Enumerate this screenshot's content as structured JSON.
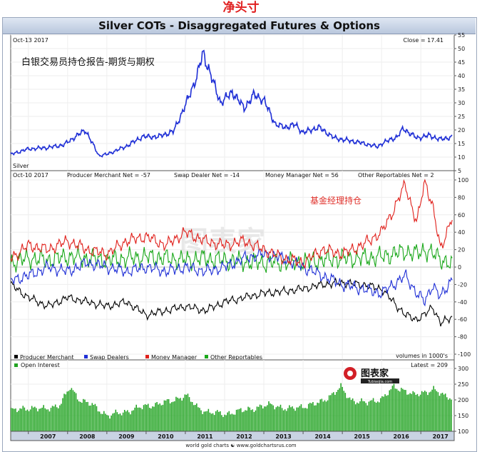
{
  "page": {
    "title": "净头寸"
  },
  "header": {
    "banner": "Silver COTs - Disaggregated Futures & Options"
  },
  "watermark": {
    "text": "图表家"
  },
  "logo": {
    "name": "图表家",
    "sub": "Tubiaojia.com"
  },
  "footer": {
    "credit": "world gold charts ☯ www.goldchartsrus.com"
  },
  "chart_data": [
    {
      "type": "line",
      "panel": "price",
      "date_label": "Oct-13  2017",
      "close_label": "Close = 17.41",
      "series_label": "Silver",
      "annotation": "白银交易员持仓报告-期货与期权",
      "ylim": [
        5,
        55
      ],
      "yticks": [
        5,
        10,
        15,
        20,
        25,
        30,
        35,
        40,
        45,
        50,
        55
      ],
      "x_years": [
        "2007",
        "2008",
        "2009",
        "2010",
        "2011",
        "2012",
        "2013",
        "2014",
        "2015",
        "2016",
        "2017"
      ],
      "x": [
        2006.55,
        2007.0,
        2007.5,
        2007.9,
        2008.2,
        2008.45,
        2008.8,
        2009.0,
        2009.5,
        2009.9,
        2010.3,
        2010.7,
        2011.0,
        2011.3,
        2011.45,
        2011.7,
        2011.9,
        2012.2,
        2012.5,
        2012.75,
        2013.0,
        2013.3,
        2013.55,
        2013.8,
        2014.0,
        2014.4,
        2014.8,
        2015.0,
        2015.4,
        2015.9,
        2016.0,
        2016.4,
        2016.55,
        2016.9,
        2017.2,
        2017.5,
        2017.78
      ],
      "values": [
        11,
        13,
        13.5,
        14.5,
        17.5,
        20,
        10.5,
        11,
        14,
        17.5,
        17.5,
        19.5,
        29,
        40,
        48.5,
        38,
        30,
        34,
        28,
        33,
        31,
        22,
        21,
        22,
        19,
        21,
        17,
        16.5,
        15.5,
        13.8,
        15,
        17.5,
        20.5,
        17,
        18,
        16.5,
        17.4
      ]
    },
    {
      "type": "line",
      "panel": "net positions",
      "date_label": "Oct-10  2017",
      "header_items": [
        "Producer Merchant Net = -57",
        "Swap Dealer Net = -14",
        "Money Manager Net = 56",
        "Other Reportables Net = 2"
      ],
      "annotation": "基金经理持仓",
      "ylim": [
        -100,
        100
      ],
      "yticks": [
        -100,
        -80,
        -60,
        -40,
        -20,
        0,
        20,
        40,
        60,
        80,
        100
      ],
      "x": [
        2006.55,
        2007.0,
        2007.5,
        2008.0,
        2008.5,
        2009.0,
        2009.5,
        2010.0,
        2010.5,
        2011.0,
        2011.5,
        2012.0,
        2012.5,
        2013.0,
        2013.5,
        2014.0,
        2014.5,
        2015.0,
        2015.5,
        2016.0,
        2016.3,
        2016.6,
        2016.9,
        2017.1,
        2017.3,
        2017.5,
        2017.78
      ],
      "series": [
        {
          "name": "Producer Merchant",
          "color": "#000000",
          "values": [
            -20,
            -35,
            -45,
            -35,
            -40,
            -45,
            -40,
            -55,
            -50,
            -45,
            -50,
            -40,
            -35,
            -30,
            -28,
            -25,
            -20,
            -18,
            -20,
            -25,
            -40,
            -55,
            -60,
            -55,
            -45,
            -65,
            -57
          ]
        },
        {
          "name": "Swap Dealers",
          "color": "#1f2fd6",
          "values": [
            -15,
            -10,
            0,
            -5,
            5,
            0,
            -5,
            0,
            -5,
            0,
            -5,
            0,
            10,
            15,
            10,
            0,
            -10,
            -20,
            -25,
            -30,
            -20,
            -10,
            -30,
            -40,
            -20,
            -35,
            -14
          ]
        },
        {
          "name": "Money Manager",
          "color": "#e0201b",
          "values": [
            10,
            25,
            20,
            30,
            20,
            15,
            30,
            35,
            25,
            40,
            30,
            25,
            30,
            20,
            10,
            5,
            20,
            15,
            25,
            40,
            65,
            95,
            50,
            100,
            70,
            20,
            56
          ]
        },
        {
          "name": "Other Reportables",
          "color": "#1aa81a",
          "values": [
            5,
            10,
            8,
            12,
            10,
            8,
            10,
            12,
            10,
            8,
            10,
            8,
            6,
            5,
            5,
            6,
            8,
            10,
            10,
            12,
            15,
            18,
            15,
            20,
            15,
            10,
            2
          ]
        }
      ],
      "legend": [
        "Producer Merchant",
        "Swap Dealers",
        "Money Manager",
        "Other Reportables"
      ],
      "legend_note": "volumes in 1000's"
    },
    {
      "type": "bar",
      "panel": "open interest",
      "label": "Open Interest",
      "latest_label": "Latest = 209",
      "color": "#22a322",
      "ylim": [
        100,
        300
      ],
      "yticks": [
        100,
        150,
        200,
        250,
        300
      ],
      "x": [
        2006.55,
        2007.0,
        2007.4,
        2007.8,
        2008.05,
        2008.3,
        2008.6,
        2009.0,
        2009.4,
        2009.8,
        2010.2,
        2010.6,
        2011.0,
        2011.3,
        2011.6,
        2012.0,
        2012.4,
        2012.8,
        2013.2,
        2013.6,
        2014.0,
        2014.4,
        2014.7,
        2014.95,
        2015.2,
        2015.6,
        2016.0,
        2016.3,
        2016.6,
        2016.8,
        2017.0,
        2017.3,
        2017.6,
        2017.78
      ],
      "values": [
        165,
        175,
        170,
        185,
        240,
        200,
        185,
        150,
        160,
        175,
        185,
        195,
        215,
        175,
        160,
        155,
        165,
        175,
        185,
        170,
        180,
        190,
        215,
        240,
        200,
        190,
        205,
        240,
        230,
        215,
        220,
        235,
        210,
        209
      ]
    }
  ],
  "chart_labels": {
    "legend_title_swatches": [
      "#000000",
      "#1f2fd6",
      "#e0201b",
      "#1aa81a"
    ]
  }
}
